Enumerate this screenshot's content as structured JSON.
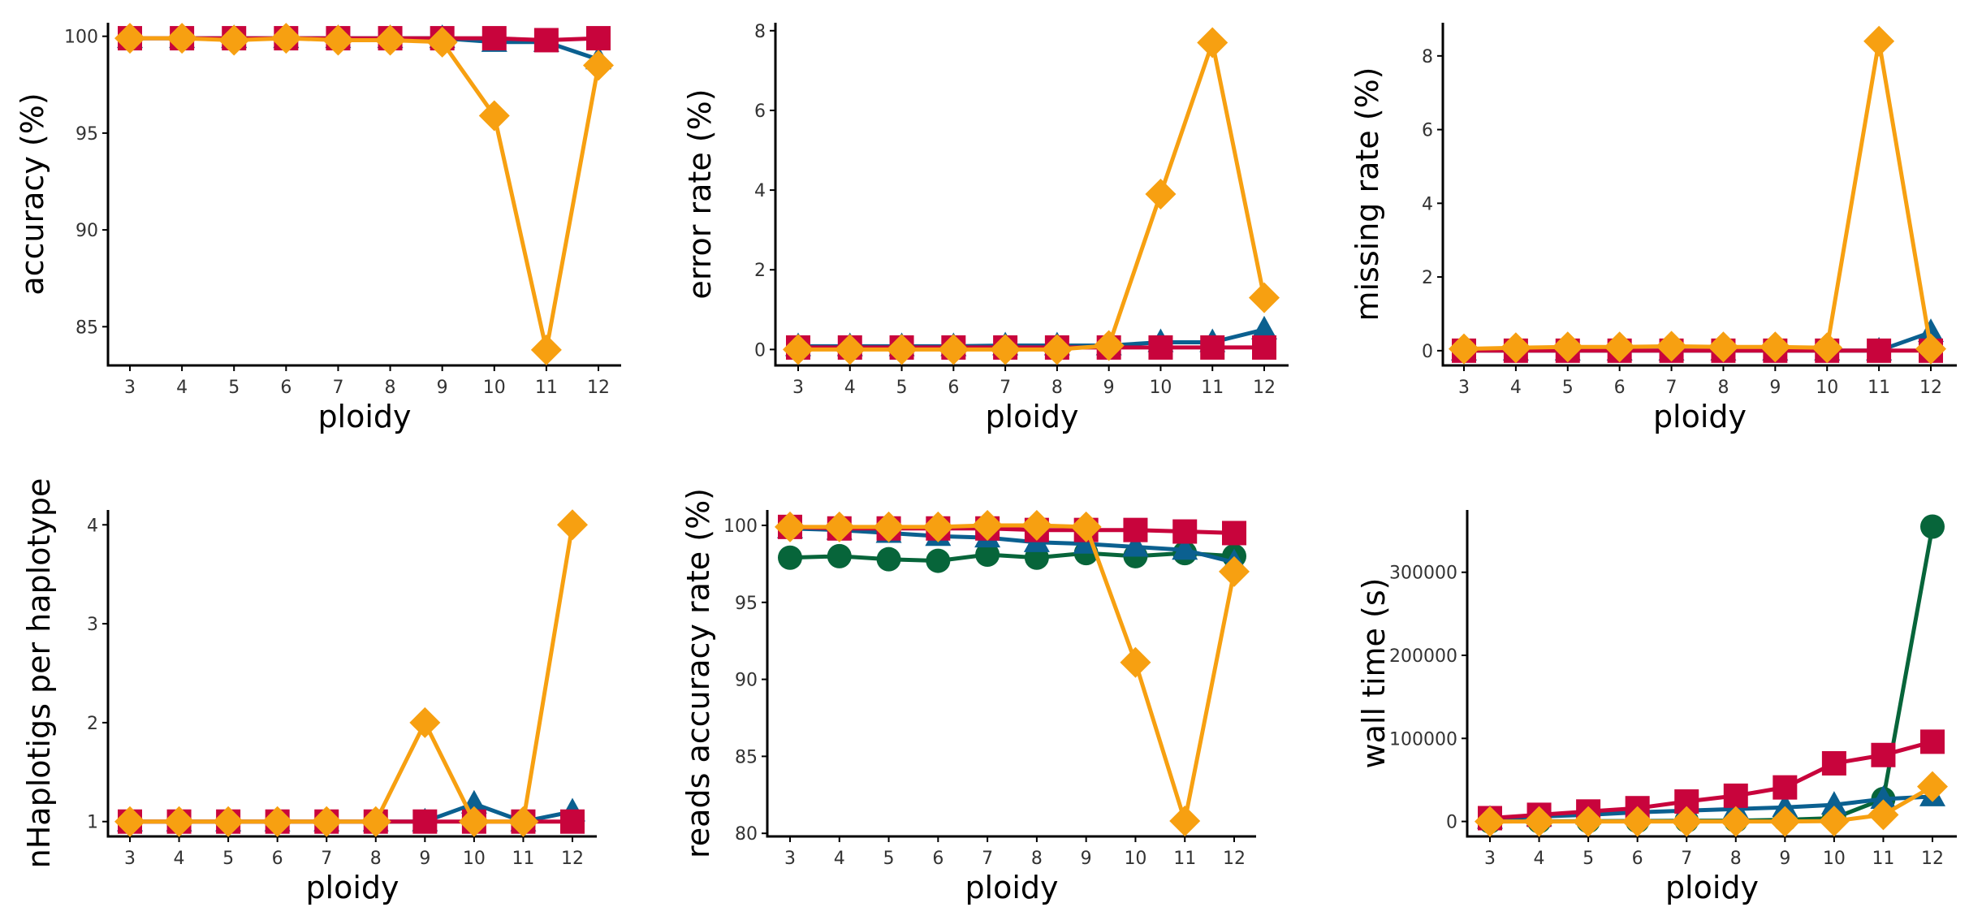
{
  "colors": {
    "A": "#0b6090",
    "B": "#c8043c",
    "C": "#f7a011",
    "D": "#07653a"
  },
  "chart_data": [
    {
      "type": "line",
      "title": "",
      "xlabel": "ploidy",
      "ylabel": "accuracy  (%)",
      "x": [
        3,
        4,
        5,
        6,
        7,
        8,
        9,
        10,
        11,
        12
      ],
      "ylim": [
        83,
        100.7
      ],
      "yticks": [
        85,
        90,
        95,
        100
      ],
      "xtick_labels": [
        "3",
        "4",
        "5",
        "6",
        "7",
        "8",
        "9",
        "10",
        "11",
        "12"
      ],
      "ytick_labels": [
        "85",
        "90",
        "95",
        "100"
      ],
      "series": [
        {
          "key": "A",
          "marker": "triangle",
          "values": [
            99.9,
            99.9,
            99.9,
            99.9,
            99.9,
            99.9,
            99.9,
            99.7,
            99.7,
            98.8
          ]
        },
        {
          "key": "B",
          "marker": "square",
          "values": [
            99.9,
            99.9,
            99.9,
            99.9,
            99.9,
            99.9,
            99.9,
            99.9,
            99.8,
            99.9
          ]
        },
        {
          "key": "C",
          "marker": "diamond",
          "values": [
            99.9,
            99.9,
            99.8,
            99.9,
            99.8,
            99.8,
            99.7,
            95.9,
            83.8,
            98.5
          ]
        }
      ]
    },
    {
      "type": "line",
      "title": "",
      "xlabel": "ploidy",
      "ylabel": "error rate  (%)",
      "x": [
        3,
        4,
        5,
        6,
        7,
        8,
        9,
        10,
        11,
        12
      ],
      "ylim": [
        -0.4,
        8.2
      ],
      "yticks": [
        0,
        2,
        4,
        6,
        8
      ],
      "xtick_labels": [
        "3",
        "4",
        "5",
        "6",
        "7",
        "8",
        "9",
        "10",
        "11",
        "12"
      ],
      "ytick_labels": [
        "0",
        "2",
        "4",
        "6",
        "8"
      ],
      "series": [
        {
          "key": "A",
          "marker": "triangle",
          "values": [
            0.08,
            0.08,
            0.08,
            0.08,
            0.1,
            0.1,
            0.1,
            0.18,
            0.18,
            0.5
          ]
        },
        {
          "key": "B",
          "marker": "square",
          "values": [
            0.05,
            0.05,
            0.05,
            0.05,
            0.05,
            0.05,
            0.05,
            0.05,
            0.05,
            0.05
          ]
        },
        {
          "key": "C",
          "marker": "diamond",
          "values": [
            0.0,
            0.0,
            0.0,
            0.0,
            0.0,
            0.0,
            0.1,
            3.9,
            7.7,
            1.3
          ]
        }
      ]
    },
    {
      "type": "line",
      "title": "",
      "xlabel": "ploidy",
      "ylabel": "missing rate  (%)",
      "x": [
        3,
        4,
        5,
        6,
        7,
        8,
        9,
        10,
        11,
        12
      ],
      "ylim": [
        -0.4,
        8.9
      ],
      "yticks": [
        0,
        2,
        4,
        6,
        8
      ],
      "xtick_labels": [
        "3",
        "4",
        "5",
        "6",
        "7",
        "8",
        "9",
        "10",
        "11",
        "12"
      ],
      "ytick_labels": [
        "0",
        "2",
        "4",
        "6",
        "8"
      ],
      "series": [
        {
          "key": "A",
          "marker": "triangle",
          "values": [
            0.0,
            0.0,
            0.0,
            0.0,
            0.0,
            0.0,
            0.0,
            0.0,
            0.0,
            0.5
          ]
        },
        {
          "key": "B",
          "marker": "square",
          "values": [
            0.0,
            0.0,
            0.0,
            0.0,
            0.0,
            0.0,
            0.0,
            0.0,
            0.0,
            0.0
          ]
        },
        {
          "key": "C",
          "marker": "diamond",
          "values": [
            0.05,
            0.08,
            0.1,
            0.1,
            0.12,
            0.1,
            0.1,
            0.08,
            8.4,
            0.05
          ]
        }
      ]
    },
    {
      "type": "line",
      "title": "",
      "xlabel": "ploidy",
      "ylabel": "nHaplotigs per haplotype",
      "x": [
        3,
        4,
        5,
        6,
        7,
        8,
        9,
        10,
        11,
        12
      ],
      "ylim": [
        0.85,
        4.15
      ],
      "yticks": [
        1,
        2,
        3,
        4
      ],
      "xtick_labels": [
        "3",
        "4",
        "5",
        "6",
        "7",
        "8",
        "9",
        "10",
        "11",
        "12"
      ],
      "ytick_labels": [
        "1",
        "2",
        "3",
        "4"
      ],
      "series": [
        {
          "key": "A",
          "marker": "triangle",
          "values": [
            1,
            1,
            1,
            1,
            1,
            1,
            1,
            1.18,
            1,
            1.1
          ]
        },
        {
          "key": "B",
          "marker": "square",
          "values": [
            1,
            1,
            1,
            1,
            1,
            1,
            1,
            1,
            1,
            1
          ]
        },
        {
          "key": "C",
          "marker": "diamond",
          "values": [
            1,
            1,
            1,
            1,
            1,
            1,
            2,
            1,
            1,
            4
          ]
        }
      ]
    },
    {
      "type": "line",
      "title": "",
      "xlabel": "ploidy",
      "ylabel": "reads accuracy rate  (%)",
      "x": [
        3,
        4,
        5,
        6,
        7,
        8,
        9,
        10,
        11,
        12
      ],
      "ylim": [
        79.8,
        101.0
      ],
      "yticks": [
        80,
        85,
        90,
        95,
        100
      ],
      "xtick_labels": [
        "3",
        "4",
        "5",
        "6",
        "7",
        "8",
        "9",
        "10",
        "11",
        "12"
      ],
      "ytick_labels": [
        "80",
        "85",
        "90",
        "95",
        "100"
      ],
      "series": [
        {
          "key": "D",
          "marker": "circle",
          "values": [
            97.9,
            98.0,
            97.8,
            97.7,
            98.1,
            97.9,
            98.2,
            98.0,
            98.2,
            98.0
          ]
        },
        {
          "key": "A",
          "marker": "triangle",
          "values": [
            99.8,
            99.7,
            99.5,
            99.3,
            99.2,
            98.9,
            98.8,
            98.6,
            98.4,
            97.6
          ]
        },
        {
          "key": "B",
          "marker": "square",
          "values": [
            99.9,
            99.8,
            99.8,
            99.8,
            99.8,
            99.7,
            99.7,
            99.7,
            99.6,
            99.5
          ]
        },
        {
          "key": "C",
          "marker": "diamond",
          "values": [
            99.9,
            99.9,
            99.9,
            99.9,
            100.0,
            100.0,
            99.9,
            91.1,
            80.8,
            97.0
          ]
        }
      ]
    },
    {
      "type": "line",
      "title": "",
      "xlabel": "ploidy",
      "ylabel": "wall time (s)",
      "x": [
        3,
        4,
        5,
        6,
        7,
        8,
        9,
        10,
        11,
        12
      ],
      "ylim": [
        -18000,
        375000
      ],
      "yticks": [
        0,
        100000,
        200000,
        300000
      ],
      "xtick_labels": [
        "3",
        "4",
        "5",
        "6",
        "7",
        "8",
        "9",
        "10",
        "11",
        "12"
      ],
      "ytick_labels": [
        "0",
        "100000",
        "200000",
        "300000"
      ],
      "series": [
        {
          "key": "D",
          "marker": "circle",
          "values": [
            0,
            200,
            400,
            600,
            800,
            1000,
            2000,
            4000,
            27000,
            355000
          ]
        },
        {
          "key": "A",
          "marker": "triangle",
          "values": [
            3000,
            6000,
            8000,
            11000,
            13000,
            15000,
            17000,
            20000,
            27000,
            30000
          ]
        },
        {
          "key": "B",
          "marker": "square",
          "values": [
            4000,
            8000,
            12000,
            16000,
            24000,
            31000,
            41000,
            70000,
            80000,
            96000
          ]
        },
        {
          "key": "C",
          "marker": "diamond",
          "values": [
            0,
            0,
            0,
            0,
            0,
            0,
            0,
            500,
            8000,
            42000
          ]
        }
      ]
    }
  ]
}
